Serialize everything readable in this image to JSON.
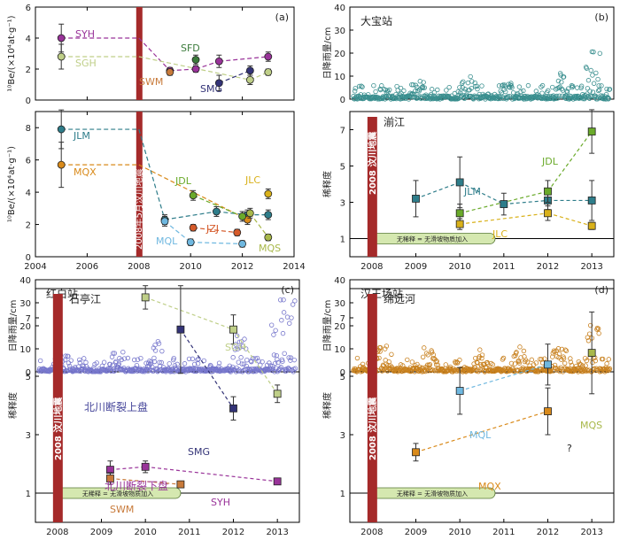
{
  "colors": {
    "quake_bar": "#a52a2a",
    "rain_dabao": "#3a8f8f",
    "rain_hongbai": "#7777cc",
    "rain_hanwang": "#c8801e",
    "baseline_fill": "#d5e8b0",
    "baseline_stroke": "#557733"
  },
  "chart_data": [
    {
      "id": "a",
      "type": "scatter",
      "panel_label": "(a)",
      "xlim": [
        2004,
        2014
      ],
      "ylim": [
        0,
        6
      ],
      "yticks": [
        "0",
        "2",
        "4",
        "6"
      ],
      "ylabel": "¹⁰Be/(×10⁴at·g⁻¹)",
      "series": [
        {
          "name": "SYH",
          "color": "#993399",
          "points": [
            [
              2005,
              4.0,
              0.9
            ],
            [
              2009.2,
              1.9,
              0.2
            ],
            [
              2010.2,
              2.0,
              0.2
            ],
            [
              2011.1,
              2.5,
              0.4
            ],
            [
              2013.0,
              2.8,
              0.3
            ]
          ]
        },
        {
          "name": "SGH",
          "color": "#bfcf88",
          "points": [
            [
              2005,
              2.8,
              0.8
            ],
            [
              2012.3,
              1.3,
              0.3
            ],
            [
              2013.0,
              1.8,
              0.2
            ]
          ]
        },
        {
          "name": "SWM",
          "color": "#c87a3a",
          "points": [
            [
              2009.2,
              1.8,
              0.2
            ]
          ]
        },
        {
          "name": "SMG",
          "color": "#333377",
          "points": [
            [
              2011.1,
              1.1,
              0.5
            ],
            [
              2012.3,
              1.9,
              0.3
            ]
          ]
        },
        {
          "name": "SFD",
          "color": "#3a7a3a",
          "points": [
            [
              2010.2,
              2.6,
              0.3
            ]
          ]
        }
      ],
      "dashed_links": [
        [
          "SYH",
          0,
          1
        ],
        [
          "SYH",
          1,
          2
        ],
        [
          "SYH",
          2,
          3
        ],
        [
          "SYH",
          3,
          4
        ]
      ],
      "flat_lines": [
        [
          "SYH",
          2005,
          2008,
          4.0
        ],
        [
          "SGH",
          2005,
          2008,
          2.8
        ]
      ]
    },
    {
      "id": "a2",
      "type": "scatter",
      "xlim": [
        2004,
        2014
      ],
      "ylim": [
        0,
        9
      ],
      "yticks": [
        "0",
        "2",
        "4",
        "6",
        "8"
      ],
      "xticks": [
        "2004",
        "2006",
        "2008",
        "2010",
        "2012",
        "2014"
      ],
      "ylabel": "¹⁰Be/(×10⁴at·g⁻¹)",
      "quake_label": "2008年5月汶川地震",
      "series": [
        {
          "name": "JLM",
          "color": "#2e7d8a",
          "points": [
            [
              2005,
              7.9,
              1.2
            ],
            [
              2009.0,
              2.3,
              0.3
            ],
            [
              2011.0,
              2.8,
              0.3
            ],
            [
              2012.2,
              2.6,
              0.3
            ],
            [
              2013.0,
              2.6,
              0.3
            ]
          ]
        },
        {
          "name": "MQX",
          "color": "#d98a1a",
          "points": [
            [
              2005,
              5.7,
              1.4
            ],
            [
              2012.2,
              2.3,
              0.3
            ]
          ]
        },
        {
          "name": "MQL",
          "color": "#6fb8e0",
          "points": [
            [
              2009.0,
              2.2,
              0.3
            ],
            [
              2010.0,
              0.9,
              0.2
            ],
            [
              2012.0,
              0.8,
              0.2
            ]
          ]
        },
        {
          "name": "JDL",
          "color": "#6aaa2a",
          "points": [
            [
              2010.1,
              3.8,
              0.3
            ],
            [
              2012.0,
              2.5,
              0.3
            ]
          ]
        },
        {
          "name": "JLC",
          "color": "#d9b11a",
          "points": [
            [
              2013.0,
              3.9,
              0.3
            ]
          ]
        },
        {
          "name": "JZJ",
          "color": "#d55a2a",
          "points": [
            [
              2010.1,
              1.8,
              0.2
            ],
            [
              2011.8,
              1.5,
              0.2
            ]
          ]
        },
        {
          "name": "MQS",
          "color": "#a8b84a",
          "points": [
            [
              2012.3,
              2.7,
              0.3
            ],
            [
              2013.0,
              1.2,
              0.2
            ]
          ]
        }
      ],
      "flat_lines": [
        [
          "JLM",
          2005,
          2008,
          7.9
        ],
        [
          "MQX",
          2005,
          2008,
          5.7
        ]
      ]
    },
    {
      "id": "b",
      "type": "scatter",
      "panel_label": "(b)",
      "station": "大宝站",
      "ylabel": "日降雨量/cm",
      "ylim": [
        0,
        40
      ],
      "yticks": [
        "0",
        "10",
        "20",
        "30",
        "40"
      ]
    },
    {
      "id": "b2",
      "type": "scatter",
      "river": "湔江",
      "ylabel": "稀释度",
      "xlim": [
        2007.5,
        2013.5
      ],
      "ylim": [
        0,
        8
      ],
      "yticks": [
        "1",
        "3",
        "5",
        "7"
      ],
      "xticks": [
        "2008",
        "2009",
        "2010",
        "2011",
        "2012",
        "2013"
      ],
      "quake_label": "2008 汶川地震",
      "baseline_label": "无稀释 = 无滑坡物质加入",
      "series": [
        {
          "name": "JLM",
          "color": "#2e7d8a",
          "points": [
            [
              2009,
              3.2,
              1.0
            ],
            [
              2010,
              4.1,
              1.4
            ],
            [
              2011,
              2.9,
              0.6
            ],
            [
              2012,
              3.1,
              0.5
            ],
            [
              2013,
              3.1,
              1.1
            ]
          ]
        },
        {
          "name": "JDL",
          "color": "#6aaa2a",
          "points": [
            [
              2010,
              2.4,
              0.5
            ],
            [
              2012,
              3.6,
              0.6
            ],
            [
              2013,
              6.9,
              1.2
            ]
          ]
        },
        {
          "name": "JLC",
          "color": "#d9b11a",
          "points": [
            [
              2010,
              1.8,
              0.3
            ],
            [
              2012,
              2.4,
              0.4
            ],
            [
              2013,
              1.7,
              0.2
            ]
          ]
        }
      ]
    },
    {
      "id": "c",
      "type": "scatter",
      "panel_label": "(c)",
      "station": "红白站",
      "ylabel": "日降雨量/cm",
      "ylim": [
        0,
        40
      ],
      "yticks": [
        "0",
        "10",
        "20",
        "30",
        "40"
      ]
    },
    {
      "id": "c2",
      "type": "scatter",
      "river": "石亭江",
      "ylabel": "稀释度",
      "xlim": [
        2007.5,
        2013.5
      ],
      "ylim": [
        0,
        8
      ],
      "yticks": [
        "1",
        "3",
        "5",
        "7"
      ],
      "xticks": [
        "2008",
        "2009",
        "2010",
        "2011",
        "2012",
        "2013"
      ],
      "quake_label": "2008 汶川地震",
      "baseline_label": "无稀释 = 无滑坡物质加入",
      "annotations": [
        "北川断裂上盘",
        "北川断裂下盘"
      ],
      "series": [
        {
          "name": "SGH",
          "color": "#bfcf88",
          "points": [
            [
              2010,
              7.7,
              0.4
            ],
            [
              2012,
              6.6,
              0.5
            ],
            [
              2013,
              4.4,
              0.3
            ]
          ]
        },
        {
          "name": "SMG",
          "color": "#333377",
          "points": [
            [
              2010.8,
              6.6,
              1.5
            ],
            [
              2012,
              3.9,
              0.4
            ]
          ]
        },
        {
          "name": "SYH",
          "color": "#993399",
          "points": [
            [
              2009.2,
              1.8,
              0.3
            ],
            [
              2010,
              1.9,
              0.2
            ],
            [
              2013,
              1.4,
              0.1
            ]
          ]
        },
        {
          "name": "SWM",
          "color": "#c87a3a",
          "points": [
            [
              2009.2,
              1.5,
              0.2
            ],
            [
              2010.8,
              1.3,
              0.1
            ]
          ]
        }
      ]
    },
    {
      "id": "d",
      "type": "scatter",
      "panel_label": "(d)",
      "station": "汉王场站",
      "ylabel": "日降雨量/cm",
      "ylim": [
        0,
        40
      ],
      "yticks": [
        "0",
        "10",
        "20",
        "30",
        "40"
      ]
    },
    {
      "id": "d2",
      "type": "scatter",
      "river": "绵远河",
      "ylabel": "稀释度",
      "xlim": [
        2007.5,
        2013.5
      ],
      "ylim": [
        0,
        8
      ],
      "yticks": [
        "1",
        "3",
        "5",
        "7"
      ],
      "xticks": [
        "2008",
        "2009",
        "2010",
        "2011",
        "2012",
        "2013"
      ],
      "quake_label": "2008 汶川地震",
      "baseline_label": "无稀释 = 无滑坡物质加入",
      "question_mark": "?",
      "series": [
        {
          "name": "MQL",
          "color": "#6fb8e0",
          "points": [
            [
              2010,
              4.5,
              0.8
            ],
            [
              2012,
              5.4,
              0.7
            ]
          ]
        },
        {
          "name": "MQX",
          "color": "#d98a1a",
          "points": [
            [
              2009,
              2.4,
              0.3
            ],
            [
              2012,
              3.8,
              0.8
            ]
          ]
        },
        {
          "name": "MQS",
          "color": "#a8b84a",
          "points": [
            [
              2013,
              5.8,
              1.4
            ]
          ]
        }
      ]
    }
  ]
}
